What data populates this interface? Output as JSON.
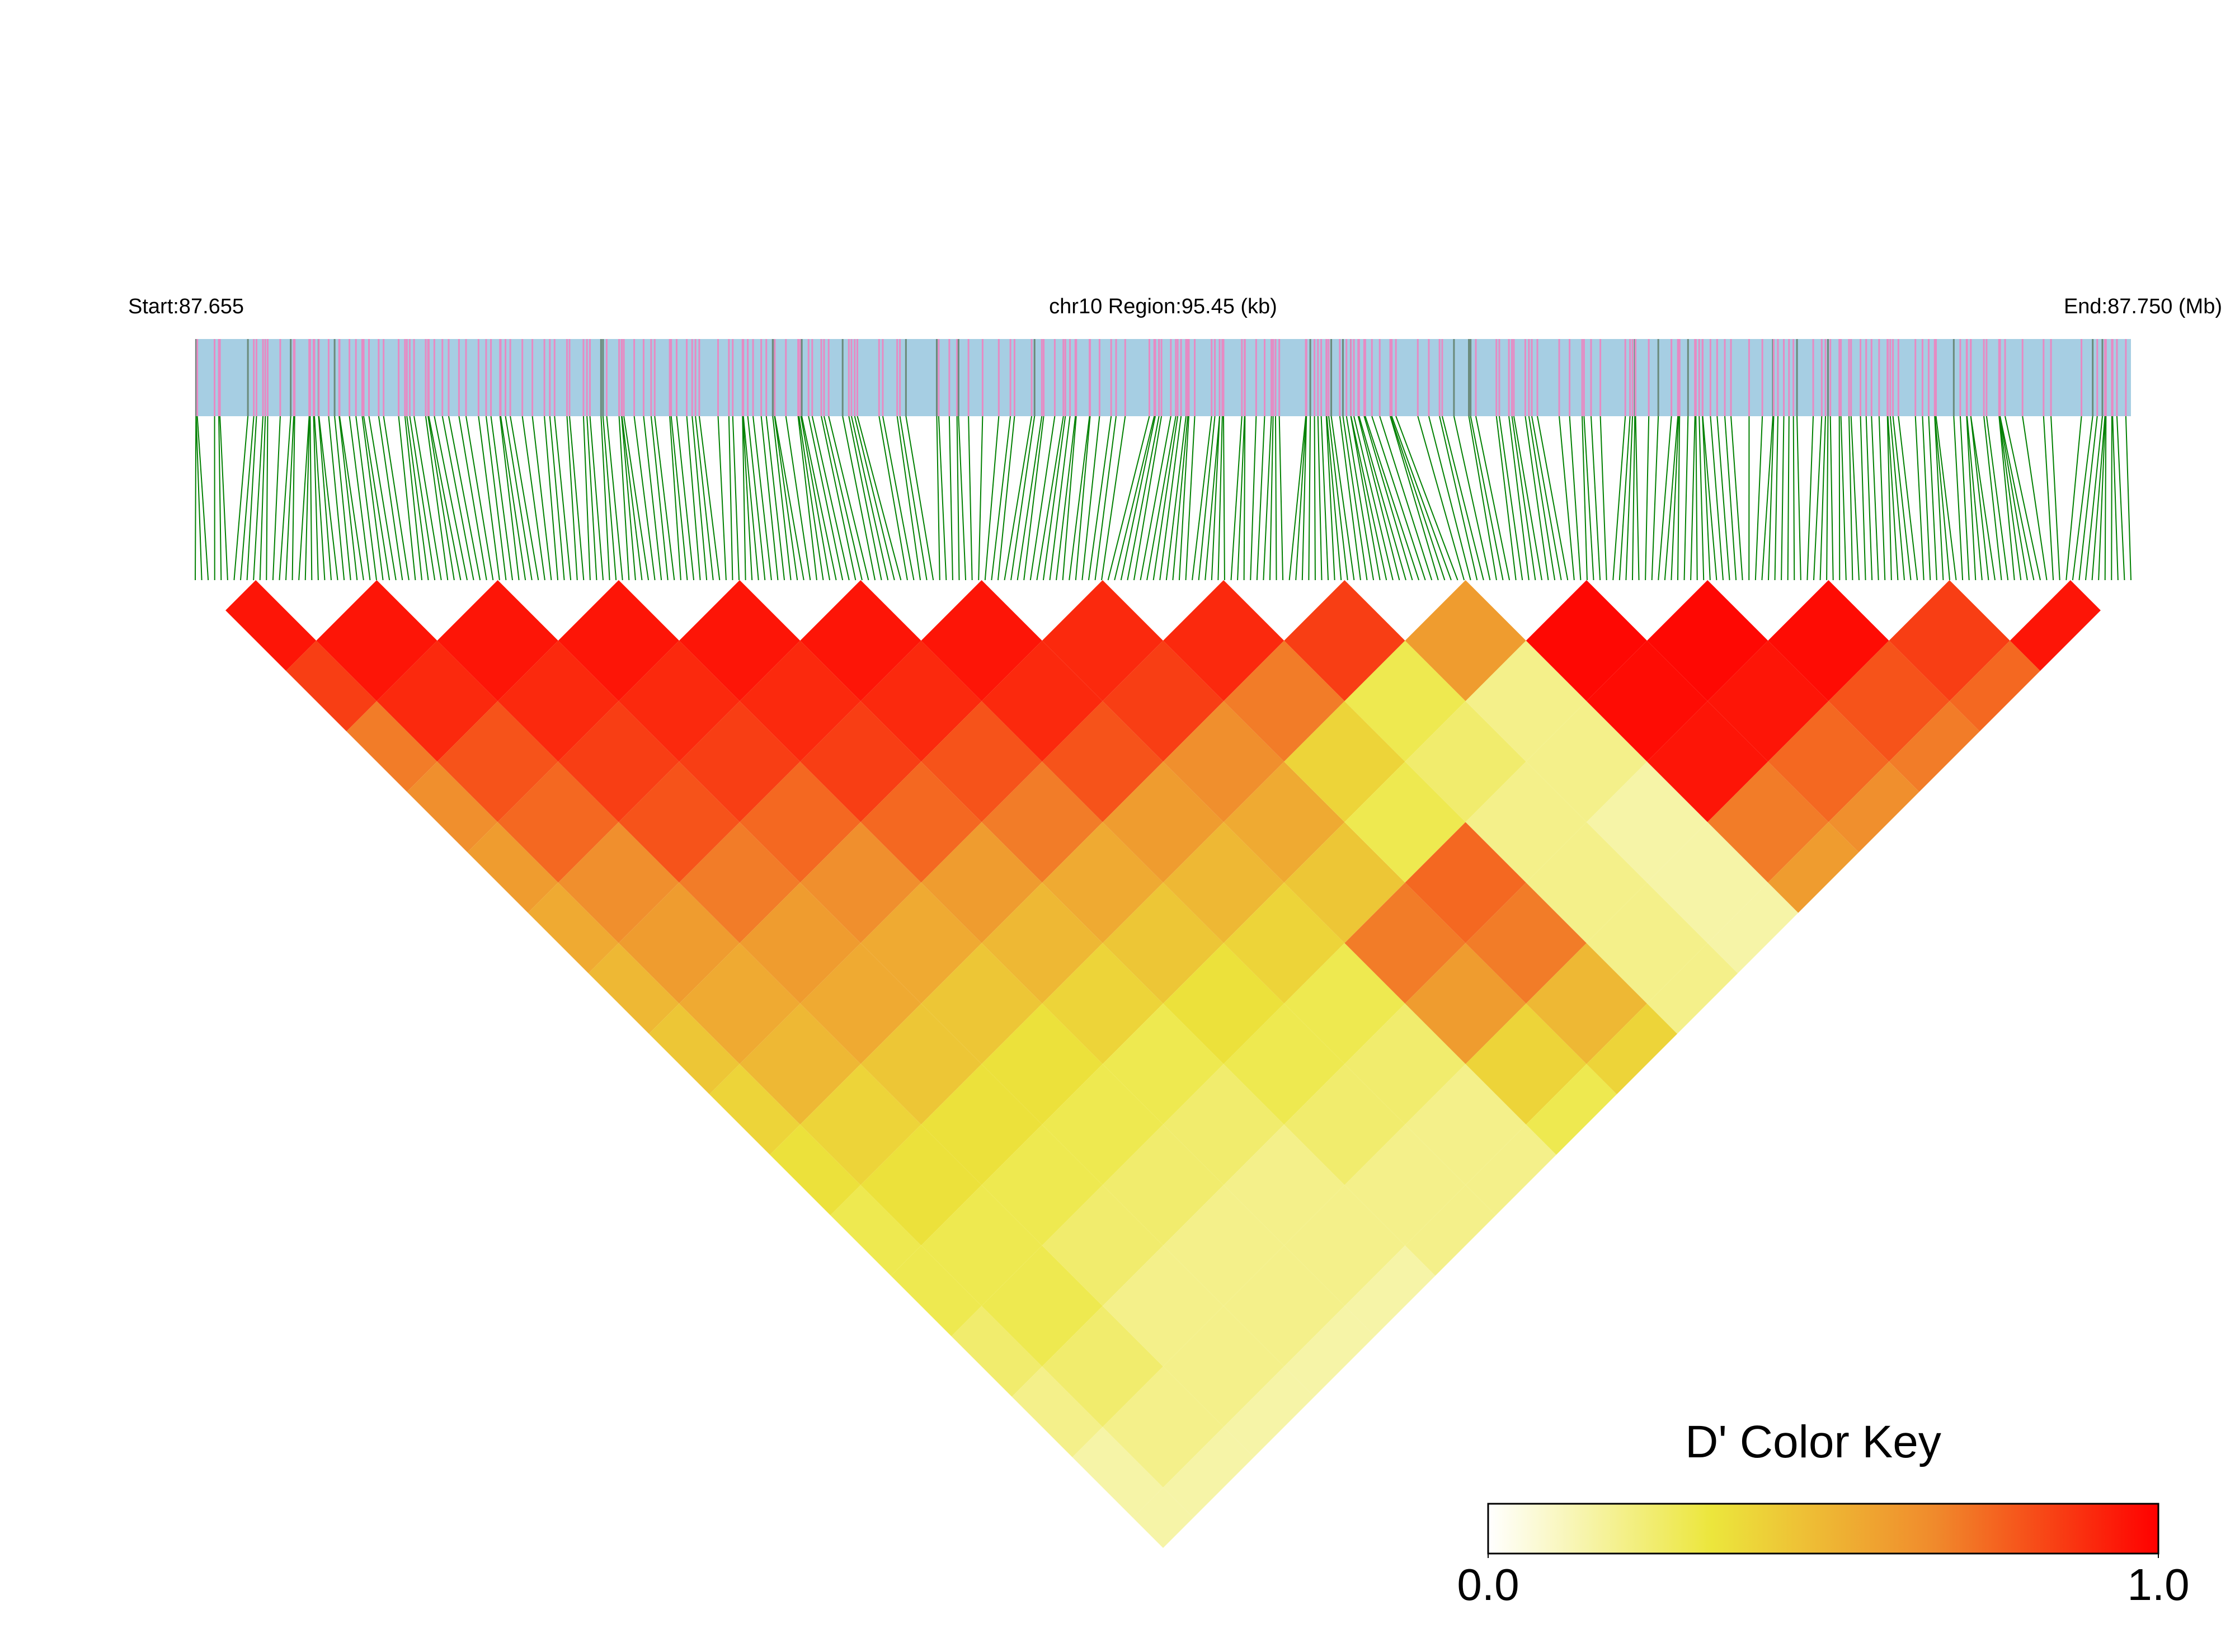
{
  "chart_data": {
    "type": "ld-heatmap",
    "start_label": "Start:87.655",
    "region_label": "chr10 Region:95.45 (kb)",
    "end_label": "End:87.750 (Mb)",
    "colorbar_title": "D' Color Key",
    "clim": [
      0,
      1
    ],
    "colorbar_ticks": [
      {
        "value": 0,
        "label": "0.0"
      },
      {
        "value": 1,
        "label": "1.0"
      }
    ],
    "colors": [
      "#ffffff",
      "#ece63c",
      "#f08a2c",
      "#ff0000"
    ],
    "dprime": [
      [
        0.95,
        0.85,
        0.7,
        0.65,
        0.6,
        0.55,
        0.5,
        0.45,
        0.4,
        0.35,
        0.3,
        0.3,
        0.25,
        0.2,
        0.15,
        0.15
      ],
      [
        0.95,
        0.9,
        0.8,
        0.75,
        0.65,
        0.6,
        0.55,
        0.5,
        0.4,
        0.35,
        0.3,
        0.3,
        0.25,
        0.2,
        0.15
      ],
      [
        0.95,
        0.9,
        0.85,
        0.8,
        0.7,
        0.6,
        0.55,
        0.45,
        0.35,
        0.3,
        0.25,
        0.2,
        0.2,
        0.15
      ],
      [
        0.95,
        0.9,
        0.85,
        0.75,
        0.65,
        0.55,
        0.45,
        0.35,
        0.3,
        0.25,
        0.2,
        0.2,
        0.15
      ],
      [
        0.95,
        0.9,
        0.85,
        0.75,
        0.6,
        0.5,
        0.4,
        0.3,
        0.25,
        0.2,
        0.2,
        0.15
      ],
      [
        0.95,
        0.9,
        0.8,
        0.7,
        0.55,
        0.45,
        0.35,
        0.3,
        0.25,
        0.2,
        0.2
      ],
      [
        0.95,
        0.9,
        0.8,
        0.6,
        0.5,
        0.4,
        0.3,
        0.25,
        0.2,
        0.2
      ],
      [
        0.9,
        0.85,
        0.65,
        0.55,
        0.45,
        0.7,
        0.6,
        0.4,
        0.3
      ],
      [
        0.9,
        0.7,
        0.4,
        0.3,
        0.75,
        0.7,
        0.5,
        0.4
      ],
      [
        0.85,
        0.3,
        0.25,
        0.2,
        0.2,
        0.2,
        0.2
      ],
      [
        0.6,
        0.2,
        0.2,
        0.15,
        0.15,
        0.15
      ],
      [
        0.98,
        0.97,
        0.95,
        0.7,
        0.6
      ],
      [
        0.98,
        0.95,
        0.75,
        0.65
      ],
      [
        0.97,
        0.8,
        0.7
      ],
      [
        0.85,
        0.75
      ],
      [
        0.95
      ]
    ]
  }
}
